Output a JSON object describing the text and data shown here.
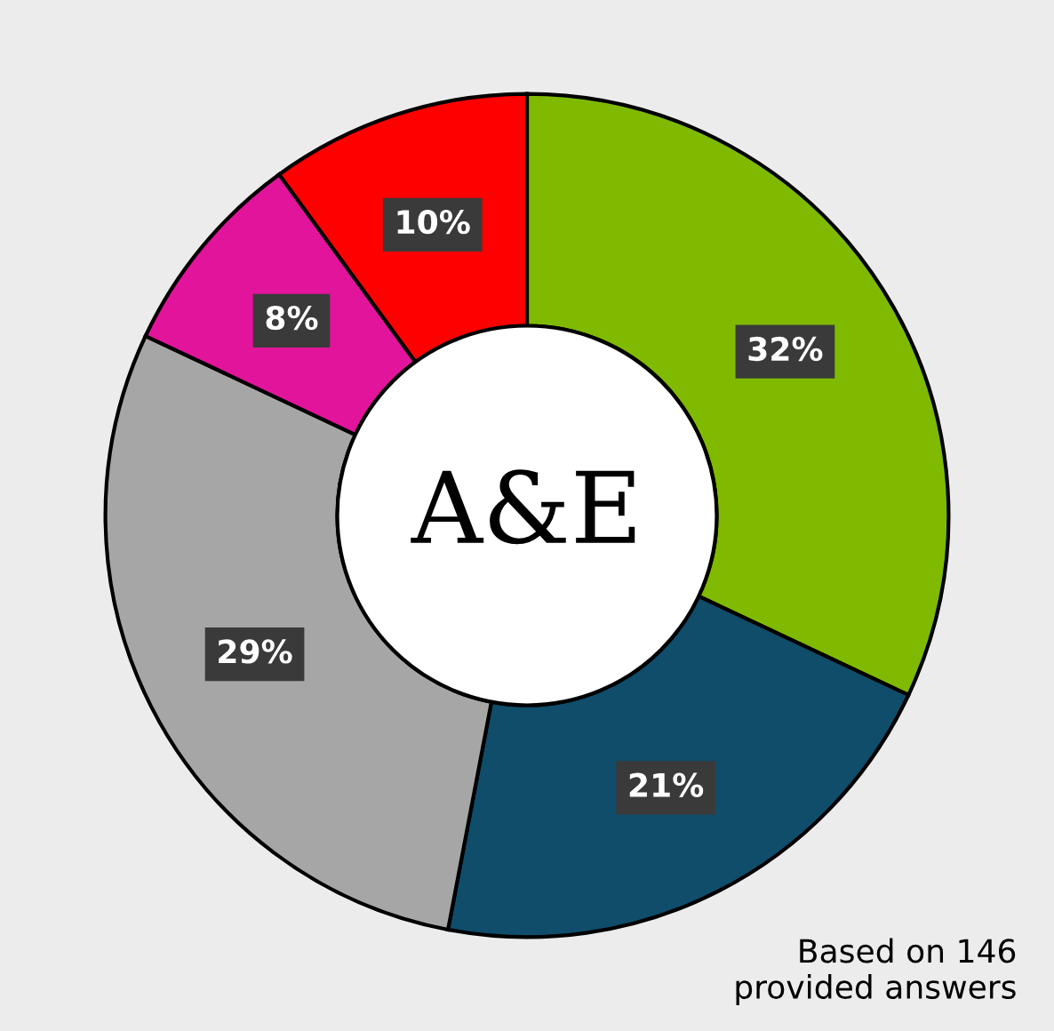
{
  "chart_data": {
    "type": "donut",
    "title": "A&E",
    "categories": [
      null,
      null,
      null,
      null,
      null
    ],
    "values": [
      32,
      21,
      29,
      8,
      10
    ],
    "value_labels": [
      "32%",
      "21%",
      "29%",
      "8%",
      "10%"
    ],
    "colors": [
      "#7fba00",
      "#0f4d6a",
      "#a6a6a6",
      "#e2149b",
      "#ff0000"
    ],
    "annotations": [
      "Based on 146\nprovided answers"
    ],
    "legend": false
  }
}
